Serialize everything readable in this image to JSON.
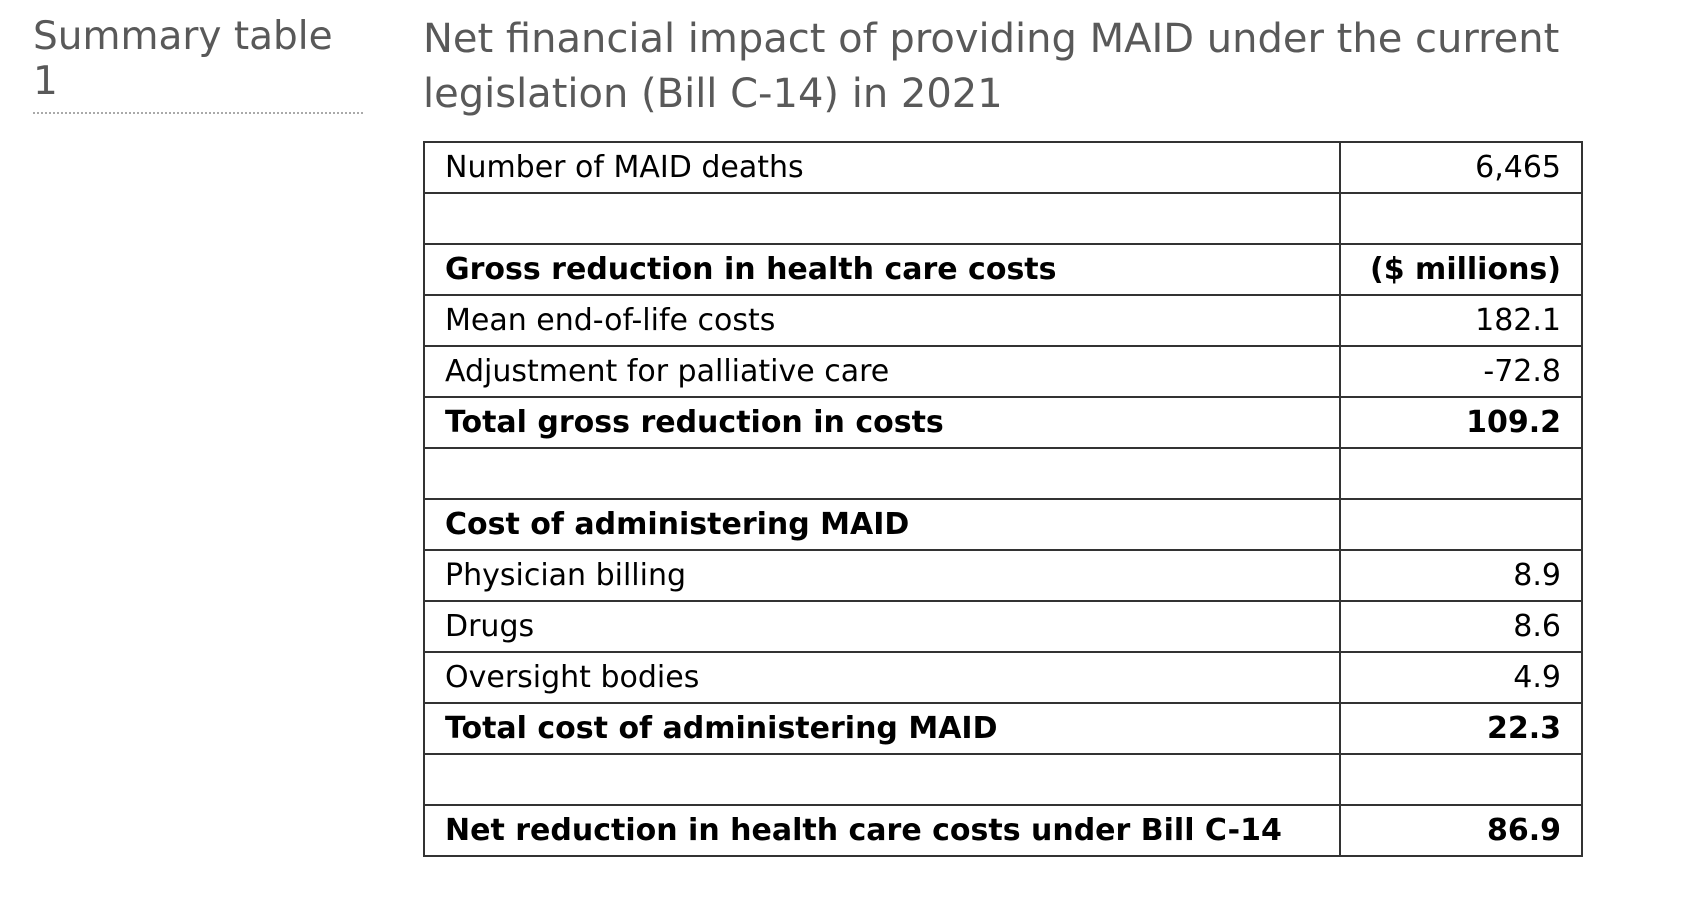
{
  "header": {
    "label": "Summary table 1",
    "title": "Net financial impact of providing MAID under the current legislation (Bill C-14) in 2021"
  },
  "table": {
    "sections": [
      {
        "rows": [
          [
            "Number of MAID deaths",
            "6,465"
          ]
        ]
      },
      {
        "heading": [
          "Gross reduction in health care costs",
          "($ millions)"
        ],
        "rows": [
          [
            "Mean end-of-life costs",
            "182.1"
          ],
          [
            "Adjustment for palliative care",
            "-72.8"
          ]
        ],
        "total": [
          "Total gross reduction in costs",
          "109.2"
        ]
      },
      {
        "heading": [
          "Cost of administering MAID"
        ],
        "rows": [
          [
            "Physician billing",
            "8.9"
          ],
          [
            "Drugs",
            "8.6"
          ],
          [
            "Oversight bodies",
            "4.9"
          ]
        ],
        "total": [
          "Total cost of administering MAID",
          "22.3"
        ]
      },
      {
        "total": [
          "Net reduction in health care costs under Bill C-14",
          "86.9"
        ]
      }
    ]
  }
}
